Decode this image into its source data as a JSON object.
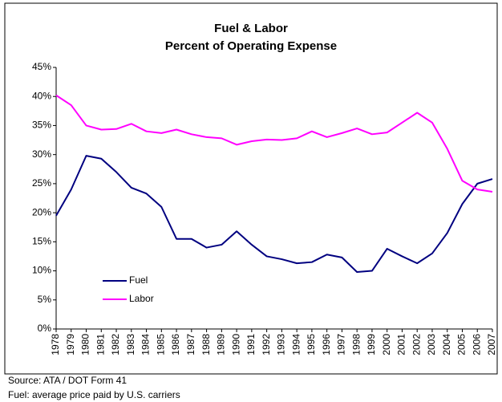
{
  "chart_data": {
    "type": "line",
    "title": "Fuel & Labor",
    "subtitle": "Percent of Operating Expense",
    "x": [
      1978,
      1979,
      1980,
      1981,
      1982,
      1983,
      1984,
      1985,
      1986,
      1987,
      1988,
      1989,
      1990,
      1991,
      1992,
      1993,
      1994,
      1995,
      1996,
      1997,
      1998,
      1999,
      2000,
      2001,
      2002,
      2003,
      2004,
      2005,
      2006,
      2007
    ],
    "xlim": [
      1978,
      2007
    ],
    "xticks": [
      1978,
      1979,
      1980,
      1981,
      1982,
      1983,
      1984,
      1985,
      1986,
      1987,
      1988,
      1989,
      1990,
      1991,
      1992,
      1993,
      1994,
      1995,
      1996,
      1997,
      1998,
      1999,
      2000,
      2001,
      2002,
      2003,
      2004,
      2005,
      2006,
      2007
    ],
    "ylim": [
      0,
      45
    ],
    "yticks": [
      {
        "value": 0,
        "label": "0%"
      },
      {
        "value": 5,
        "label": "5%"
      },
      {
        "value": 10,
        "label": "10%"
      },
      {
        "value": 15,
        "label": "15%"
      },
      {
        "value": 20,
        "label": "20%"
      },
      {
        "value": 25,
        "label": "25%"
      },
      {
        "value": 30,
        "label": "30%"
      },
      {
        "value": 35,
        "label": "35%"
      },
      {
        "value": 40,
        "label": "40%"
      },
      {
        "value": 45,
        "label": "45%"
      }
    ],
    "series": [
      {
        "name": "Fuel",
        "color": "#000080",
        "values": [
          19.5,
          24,
          29.8,
          29.3,
          27,
          24.3,
          23.3,
          21,
          15.5,
          15.5,
          14,
          14.5,
          16.8,
          14.5,
          12.5,
          12,
          11.3,
          11.5,
          12.8,
          12.3,
          9.8,
          10,
          13.8,
          12.5,
          11.3,
          13,
          16.5,
          21.5,
          25,
          25.8
        ]
      },
      {
        "name": "Labor",
        "color": "#ff00ff",
        "values": [
          40.2,
          38.5,
          35,
          34.3,
          34.4,
          35.3,
          34,
          33.7,
          34.3,
          33.5,
          33,
          32.8,
          31.7,
          32.3,
          32.6,
          32.5,
          32.8,
          34,
          33,
          33.7,
          34.5,
          33.5,
          33.8,
          35.5,
          37.2,
          35.5,
          31,
          25.5,
          24,
          23.6
        ]
      }
    ],
    "legend": "lower-left",
    "notes": [
      "Source: ATA / DOT Form 41",
      "Fuel: average price paid by U.S. carriers"
    ]
  }
}
